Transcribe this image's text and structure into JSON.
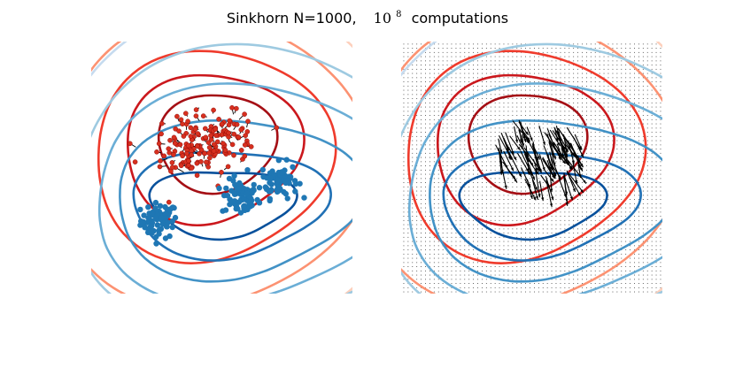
{
  "figure": {
    "title_prefix": "Sinkhorn N=1000,",
    "title_base": "10",
    "title_exponent": "8",
    "title_suffix": "computations"
  },
  "chart_data": [
    {
      "type": "scatter",
      "title": "",
      "xlabel": "",
      "ylabel": "",
      "grid": false,
      "axes_visible": false,
      "description": "Left panel: red source point cloud with black displacement arrows, blue target clusters, red/blue level-set contours",
      "source_color": "#d7301f",
      "target_color": "#1f77b4",
      "source_clusters": [
        {
          "cx": 0.38,
          "cy": 0.58,
          "spread": 0.08,
          "count": 110
        },
        {
          "cx": 0.52,
          "cy": 0.62,
          "spread": 0.06,
          "count": 60
        }
      ],
      "target_clusters": [
        {
          "cx": 0.26,
          "cy": 0.29,
          "spread": 0.035,
          "count": 70
        },
        {
          "cx": 0.57,
          "cy": 0.38,
          "spread": 0.035,
          "count": 70
        },
        {
          "cx": 0.72,
          "cy": 0.45,
          "spread": 0.035,
          "count": 70
        }
      ]
    },
    {
      "type": "quiver",
      "title": "",
      "xlabel": "",
      "ylabel": "",
      "grid": false,
      "axes_visible": false,
      "description": "Right panel: dense grid of dots with black gradient arrows, same red/blue level-set contours",
      "grid_resolution": 60,
      "arrow_color": "#000000"
    }
  ],
  "contours": {
    "red_shades": [
      "#fdd0bc",
      "#fc9272",
      "#ef3b2c",
      "#cb181d",
      "#a50f15"
    ],
    "blue_shades": [
      "#deebf7",
      "#c6dbef",
      "#9ecae1",
      "#6baed6",
      "#4292c6",
      "#2171b5",
      "#08519c"
    ]
  }
}
